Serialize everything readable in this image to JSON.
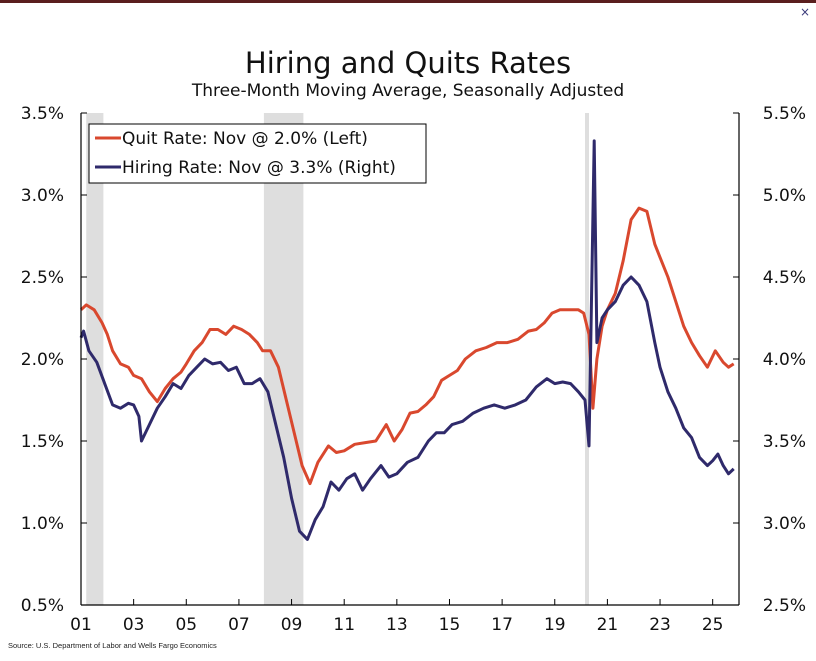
{
  "window": {
    "close_glyph": "×"
  },
  "chart_data": {
    "type": "line",
    "title": "Hiring and Quits Rates",
    "subtitle": "Three-Month Moving Average, Seasonally Adjusted",
    "source": "Source: U.S. Department of Labor and Wells Fargo Economics",
    "x_range": [
      2001.0,
      2026.0
    ],
    "x_ticks": [
      {
        "value": 2001,
        "label": "01"
      },
      {
        "value": 2003,
        "label": "03"
      },
      {
        "value": 2005,
        "label": "05"
      },
      {
        "value": 2007,
        "label": "07"
      },
      {
        "value": 2009,
        "label": "09"
      },
      {
        "value": 2011,
        "label": "11"
      },
      {
        "value": 2013,
        "label": "13"
      },
      {
        "value": 2015,
        "label": "15"
      },
      {
        "value": 2017,
        "label": "17"
      },
      {
        "value": 2019,
        "label": "19"
      },
      {
        "value": 2021,
        "label": "21"
      },
      {
        "value": 2023,
        "label": "23"
      },
      {
        "value": 2025,
        "label": "25"
      }
    ],
    "y_left": {
      "range": [
        0.5,
        3.5
      ],
      "ticks": [
        "0.5%",
        "1.0%",
        "1.5%",
        "2.0%",
        "2.5%",
        "3.0%",
        "3.5%"
      ]
    },
    "y_right": {
      "range": [
        2.5,
        5.5
      ],
      "ticks": [
        "2.5%",
        "3.0%",
        "3.5%",
        "4.0%",
        "4.5%",
        "5.0%",
        "5.5%"
      ]
    },
    "legend": {
      "position": "top-left"
    },
    "recessions": [
      [
        2001.2,
        2001.85
      ],
      [
        2007.95,
        2009.45
      ],
      [
        2020.15,
        2020.3
      ]
    ],
    "colors": {
      "quits": "#d9482e",
      "hires": "#2f2a6b",
      "recession": "#dedede"
    },
    "series": [
      {
        "name": "Quit Rate: Nov @ 2.0% (Left)",
        "axis": "left",
        "color": "#d9482e",
        "points": [
          [
            2001.0,
            2.3
          ],
          [
            2001.2,
            2.33
          ],
          [
            2001.5,
            2.3
          ],
          [
            2001.8,
            2.22
          ],
          [
            2002.0,
            2.15
          ],
          [
            2002.2,
            2.05
          ],
          [
            2002.5,
            1.97
          ],
          [
            2002.8,
            1.95
          ],
          [
            2003.0,
            1.9
          ],
          [
            2003.3,
            1.88
          ],
          [
            2003.6,
            1.8
          ],
          [
            2003.9,
            1.74
          ],
          [
            2004.2,
            1.82
          ],
          [
            2004.5,
            1.88
          ],
          [
            2004.8,
            1.92
          ],
          [
            2005.0,
            1.97
          ],
          [
            2005.3,
            2.05
          ],
          [
            2005.6,
            2.1
          ],
          [
            2005.9,
            2.18
          ],
          [
            2006.2,
            2.18
          ],
          [
            2006.5,
            2.15
          ],
          [
            2006.8,
            2.2
          ],
          [
            2007.1,
            2.18
          ],
          [
            2007.4,
            2.15
          ],
          [
            2007.7,
            2.1
          ],
          [
            2007.9,
            2.05
          ],
          [
            2008.2,
            2.05
          ],
          [
            2008.5,
            1.95
          ],
          [
            2008.8,
            1.75
          ],
          [
            2009.1,
            1.55
          ],
          [
            2009.4,
            1.35
          ],
          [
            2009.7,
            1.24
          ],
          [
            2010.0,
            1.37
          ],
          [
            2010.4,
            1.47
          ],
          [
            2010.7,
            1.43
          ],
          [
            2011.0,
            1.44
          ],
          [
            2011.4,
            1.48
          ],
          [
            2011.8,
            1.49
          ],
          [
            2012.2,
            1.5
          ],
          [
            2012.6,
            1.6
          ],
          [
            2012.9,
            1.5
          ],
          [
            2013.2,
            1.57
          ],
          [
            2013.5,
            1.67
          ],
          [
            2013.8,
            1.68
          ],
          [
            2014.1,
            1.72
          ],
          [
            2014.4,
            1.77
          ],
          [
            2014.7,
            1.87
          ],
          [
            2015.0,
            1.9
          ],
          [
            2015.3,
            1.93
          ],
          [
            2015.6,
            2.0
          ],
          [
            2016.0,
            2.05
          ],
          [
            2016.4,
            2.07
          ],
          [
            2016.8,
            2.1
          ],
          [
            2017.2,
            2.1
          ],
          [
            2017.6,
            2.12
          ],
          [
            2018.0,
            2.17
          ],
          [
            2018.3,
            2.18
          ],
          [
            2018.6,
            2.22
          ],
          [
            2018.9,
            2.28
          ],
          [
            2019.2,
            2.3
          ],
          [
            2019.6,
            2.3
          ],
          [
            2019.9,
            2.3
          ],
          [
            2020.1,
            2.28
          ],
          [
            2020.3,
            2.15
          ],
          [
            2020.45,
            1.7
          ],
          [
            2020.6,
            2.0
          ],
          [
            2020.8,
            2.2
          ],
          [
            2021.0,
            2.3
          ],
          [
            2021.3,
            2.4
          ],
          [
            2021.6,
            2.6
          ],
          [
            2021.9,
            2.85
          ],
          [
            2022.2,
            2.92
          ],
          [
            2022.5,
            2.9
          ],
          [
            2022.8,
            2.7
          ],
          [
            2023.0,
            2.62
          ],
          [
            2023.3,
            2.5
          ],
          [
            2023.6,
            2.35
          ],
          [
            2023.9,
            2.2
          ],
          [
            2024.2,
            2.1
          ],
          [
            2024.5,
            2.02
          ],
          [
            2024.8,
            1.95
          ],
          [
            2025.1,
            2.05
          ],
          [
            2025.4,
            1.98
          ],
          [
            2025.6,
            1.95
          ],
          [
            2025.8,
            1.97
          ]
        ]
      },
      {
        "name": "Hiring Rate: Nov @ 3.3% (Right)",
        "axis": "right",
        "color": "#2f2a6b",
        "points": [
          [
            2001.0,
            4.13
          ],
          [
            2001.1,
            4.17
          ],
          [
            2001.3,
            4.05
          ],
          [
            2001.6,
            3.98
          ],
          [
            2001.9,
            3.85
          ],
          [
            2002.2,
            3.72
          ],
          [
            2002.5,
            3.7
          ],
          [
            2002.8,
            3.73
          ],
          [
            2003.0,
            3.72
          ],
          [
            2003.2,
            3.65
          ],
          [
            2003.3,
            3.5
          ],
          [
            2003.6,
            3.6
          ],
          [
            2003.9,
            3.7
          ],
          [
            2004.2,
            3.77
          ],
          [
            2004.5,
            3.85
          ],
          [
            2004.8,
            3.82
          ],
          [
            2005.1,
            3.9
          ],
          [
            2005.4,
            3.95
          ],
          [
            2005.7,
            4.0
          ],
          [
            2006.0,
            3.97
          ],
          [
            2006.3,
            3.98
          ],
          [
            2006.6,
            3.93
          ],
          [
            2006.9,
            3.95
          ],
          [
            2007.2,
            3.85
          ],
          [
            2007.5,
            3.85
          ],
          [
            2007.8,
            3.88
          ],
          [
            2008.1,
            3.8
          ],
          [
            2008.4,
            3.6
          ],
          [
            2008.7,
            3.4
          ],
          [
            2009.0,
            3.15
          ],
          [
            2009.3,
            2.95
          ],
          [
            2009.6,
            2.9
          ],
          [
            2009.9,
            3.02
          ],
          [
            2010.2,
            3.1
          ],
          [
            2010.5,
            3.25
          ],
          [
            2010.8,
            3.2
          ],
          [
            2011.1,
            3.27
          ],
          [
            2011.4,
            3.3
          ],
          [
            2011.7,
            3.2
          ],
          [
            2012.0,
            3.27
          ],
          [
            2012.4,
            3.35
          ],
          [
            2012.7,
            3.28
          ],
          [
            2013.0,
            3.3
          ],
          [
            2013.4,
            3.37
          ],
          [
            2013.8,
            3.4
          ],
          [
            2014.2,
            3.5
          ],
          [
            2014.5,
            3.55
          ],
          [
            2014.8,
            3.55
          ],
          [
            2015.1,
            3.6
          ],
          [
            2015.5,
            3.62
          ],
          [
            2015.9,
            3.67
          ],
          [
            2016.3,
            3.7
          ],
          [
            2016.7,
            3.72
          ],
          [
            2017.1,
            3.7
          ],
          [
            2017.5,
            3.72
          ],
          [
            2017.9,
            3.75
          ],
          [
            2018.3,
            3.83
          ],
          [
            2018.7,
            3.88
          ],
          [
            2019.0,
            3.85
          ],
          [
            2019.3,
            3.86
          ],
          [
            2019.6,
            3.85
          ],
          [
            2019.9,
            3.8
          ],
          [
            2020.15,
            3.75
          ],
          [
            2020.3,
            3.47
          ],
          [
            2020.5,
            5.33
          ],
          [
            2020.6,
            4.1
          ],
          [
            2020.8,
            4.25
          ],
          [
            2021.0,
            4.3
          ],
          [
            2021.3,
            4.35
          ],
          [
            2021.6,
            4.45
          ],
          [
            2021.9,
            4.5
          ],
          [
            2022.2,
            4.45
          ],
          [
            2022.5,
            4.35
          ],
          [
            2022.8,
            4.1
          ],
          [
            2023.0,
            3.95
          ],
          [
            2023.3,
            3.8
          ],
          [
            2023.6,
            3.7
          ],
          [
            2023.9,
            3.58
          ],
          [
            2024.2,
            3.52
          ],
          [
            2024.5,
            3.4
          ],
          [
            2024.8,
            3.35
          ],
          [
            2025.0,
            3.38
          ],
          [
            2025.2,
            3.42
          ],
          [
            2025.4,
            3.35
          ],
          [
            2025.6,
            3.3
          ],
          [
            2025.8,
            3.33
          ]
        ]
      }
    ]
  }
}
